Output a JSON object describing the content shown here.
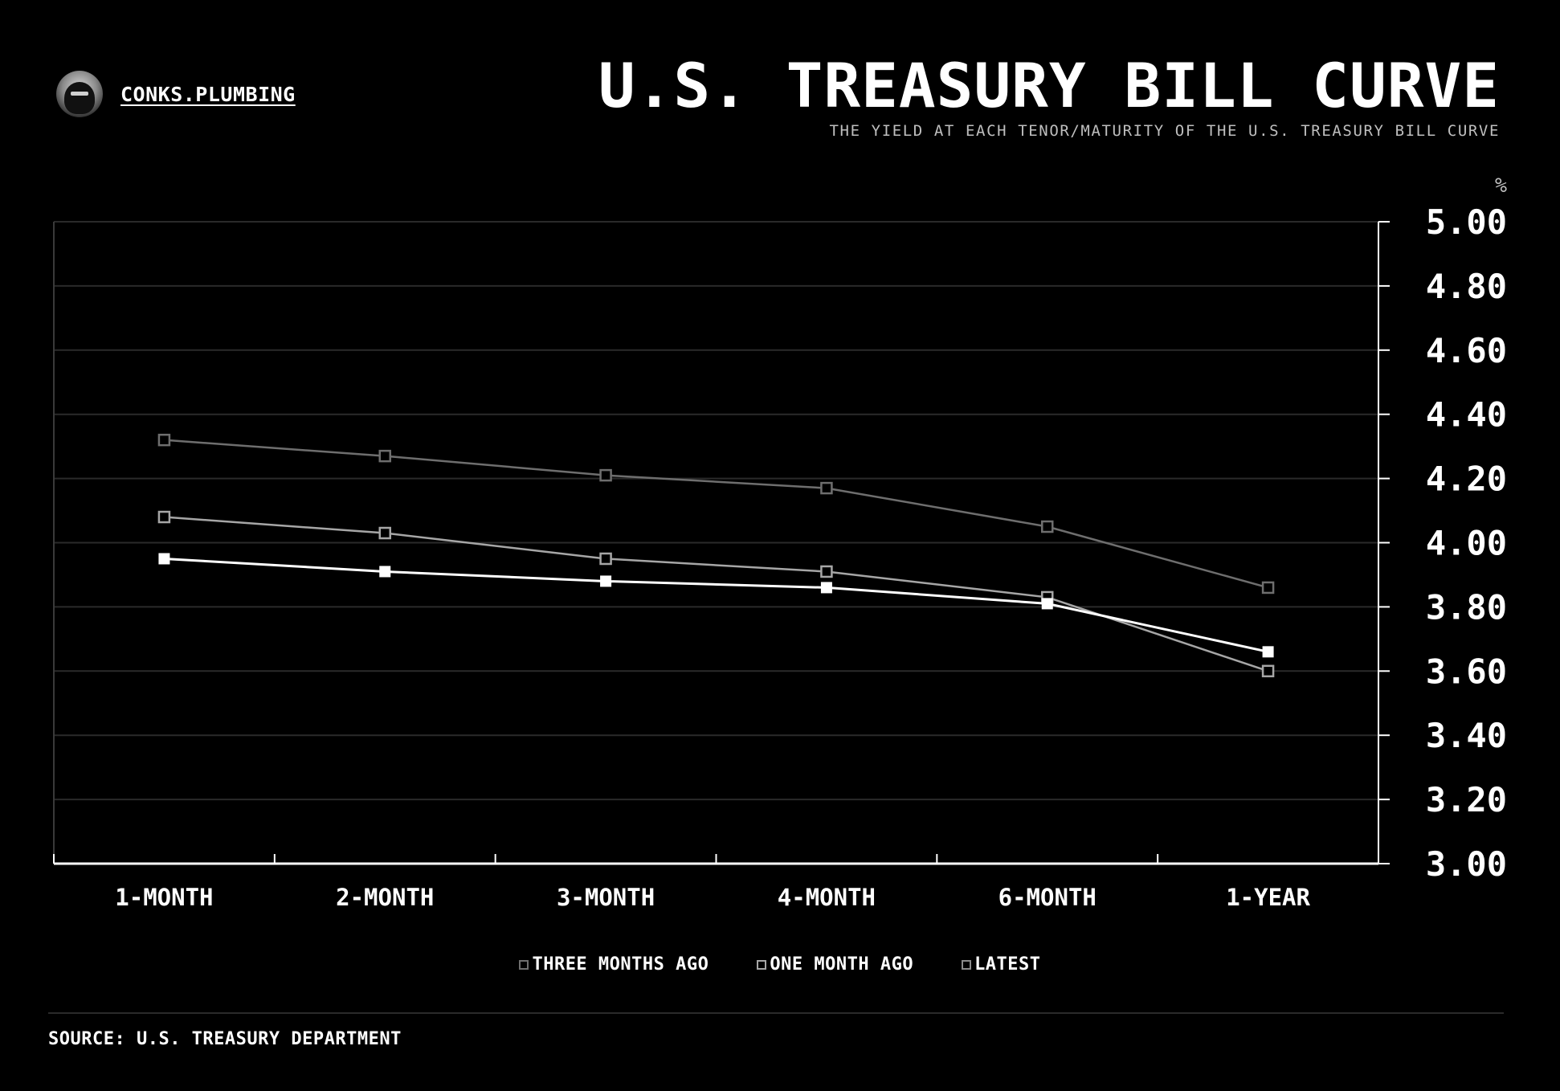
{
  "brand": {
    "name": "CONKS.PLUMBING",
    "avatar_icon": "masked-figure-icon"
  },
  "header": {
    "title": "U.S. TREASURY BILL CURVE",
    "subtitle": "THE YIELD AT EACH TENOR/MATURITY OF THE U.S. TREASURY BILL CURVE"
  },
  "footer": {
    "source": "SOURCE: U.S. TREASURY DEPARTMENT"
  },
  "colors": {
    "background": "#000000",
    "text": "#ffffff",
    "grid": "#2a2a2a",
    "axis": "#ffffff"
  },
  "chart_data": {
    "type": "line",
    "title": "U.S. TREASURY BILL CURVE",
    "subtitle": "THE YIELD AT EACH TENOR/MATURITY OF THE U.S. TREASURY BILL CURVE",
    "unit": "%",
    "categories": [
      "1-MONTH",
      "2-MONTH",
      "3-MONTH",
      "4-MONTH",
      "6-MONTH",
      "1-YEAR"
    ],
    "ylim": [
      3.0,
      5.0
    ],
    "yticks": [
      "3.00",
      "3.20",
      "3.40",
      "3.60",
      "3.80",
      "4.00",
      "4.20",
      "4.40",
      "4.60",
      "4.80",
      "5.00"
    ],
    "y_axis_position": "right",
    "grid": true,
    "legend_position": "bottom-center",
    "series": [
      {
        "name": "THREE MONTHS AGO",
        "values": [
          4.32,
          4.27,
          4.21,
          4.17,
          4.05,
          3.86
        ],
        "color": "#6e6e6e",
        "marker": "hollow-square"
      },
      {
        "name": "ONE MONTH AGO",
        "values": [
          4.08,
          4.03,
          3.95,
          3.91,
          3.83,
          3.6
        ],
        "color": "#a6a6a6",
        "marker": "hollow-square"
      },
      {
        "name": "LATEST",
        "values": [
          3.95,
          3.91,
          3.88,
          3.86,
          3.81,
          3.66
        ],
        "color": "#ffffff",
        "marker": "filled-square"
      }
    ]
  }
}
